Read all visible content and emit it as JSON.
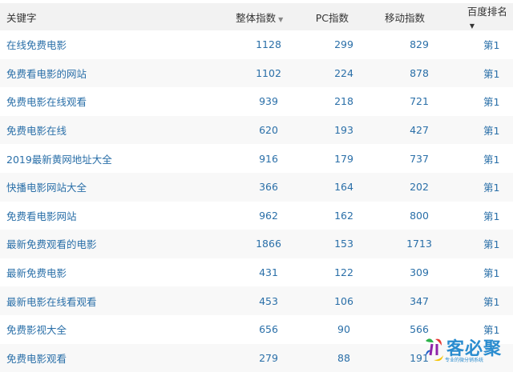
{
  "headers": {
    "keyword": "关键字",
    "overall": "整体指数",
    "pc": "PC指数",
    "mobile": "移动指数",
    "rank": "百度排名",
    "sort_icon": "caret-down"
  },
  "rows": [
    {
      "keyword": "在线免费电影",
      "overall": "1128",
      "pc": "299",
      "mobile": "829",
      "rank": "第1"
    },
    {
      "keyword": "免费看电影的网站",
      "overall": "1102",
      "pc": "224",
      "mobile": "878",
      "rank": "第1"
    },
    {
      "keyword": "免费电影在线观看",
      "overall": "939",
      "pc": "218",
      "mobile": "721",
      "rank": "第1"
    },
    {
      "keyword": "免费电影在线",
      "overall": "620",
      "pc": "193",
      "mobile": "427",
      "rank": "第1"
    },
    {
      "keyword": "2019最新黄网地址大全",
      "overall": "916",
      "pc": "179",
      "mobile": "737",
      "rank": "第1"
    },
    {
      "keyword": "快播电影网站大全",
      "overall": "366",
      "pc": "164",
      "mobile": "202",
      "rank": "第1"
    },
    {
      "keyword": "免费看电影网站",
      "overall": "962",
      "pc": "162",
      "mobile": "800",
      "rank": "第1"
    },
    {
      "keyword": "最新免费观看的电影",
      "overall": "1866",
      "pc": "153",
      "mobile": "1713",
      "rank": "第1"
    },
    {
      "keyword": "最新免费电影",
      "overall": "431",
      "pc": "122",
      "mobile": "309",
      "rank": "第1"
    },
    {
      "keyword": "最新电影在线看观看",
      "overall": "453",
      "pc": "106",
      "mobile": "347",
      "rank": "第1"
    },
    {
      "keyword": "免费影视大全",
      "overall": "656",
      "pc": "90",
      "mobile": "566",
      "rank": "第1"
    },
    {
      "keyword": "免费电影观看",
      "overall": "279",
      "pc": "88",
      "mobile": "191",
      "rank": ""
    }
  ],
  "watermark": {
    "name": "客必聚",
    "tagline": "专业的微分销系统"
  },
  "colors": {
    "link": "#2a6fa8",
    "header_bg": "#f2f2f2"
  }
}
